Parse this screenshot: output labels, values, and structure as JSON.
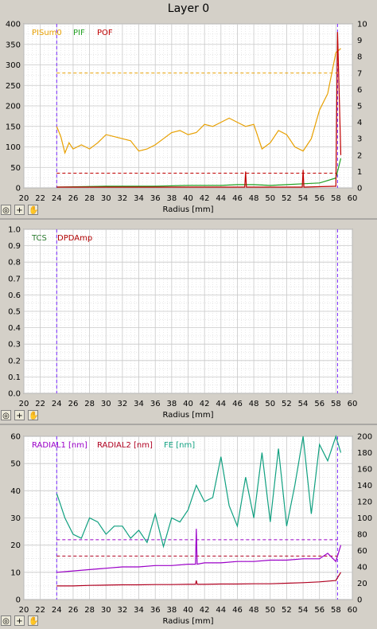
{
  "window": {
    "title": "Layer 0"
  },
  "colors": {
    "plot_bg": "#ffffff",
    "grid": "#c8c8c8",
    "pisum": "#e8a000",
    "pif": "#22a022",
    "pof": "#c00000",
    "tcs": "#2e7d32",
    "dpd": "#b00000",
    "radial1": "#9b00c8",
    "radial2": "#b00020",
    "fe": "#10a080",
    "marker": "#7a28ff"
  },
  "panels": [
    {
      "xlabel": "Radius [mm]",
      "toolbar": [
        "target-icon",
        "plus-icon",
        "hand-icon"
      ]
    },
    {
      "xlabel": "Radius [mm]",
      "toolbar": [
        "target-icon",
        "plus-icon",
        "hand-icon"
      ]
    },
    {
      "xlabel": "Radius [mm]",
      "toolbar": [
        "target-icon",
        "plus-icon",
        "hand-icon"
      ]
    }
  ],
  "chart_data": [
    {
      "type": "line",
      "xlabel": "Radius [mm]",
      "xlim": [
        20,
        60
      ],
      "xticks": [
        20,
        22,
        24,
        26,
        28,
        30,
        32,
        34,
        36,
        38,
        40,
        42,
        44,
        46,
        48,
        50,
        52,
        54,
        56,
        58,
        60
      ],
      "ylim": [
        0,
        400
      ],
      "yticks": [
        0,
        50,
        100,
        150,
        200,
        250,
        300,
        350,
        400
      ],
      "y2lim": [
        0,
        10
      ],
      "y2ticks": [
        0,
        1,
        2,
        3,
        4,
        5,
        6,
        7,
        8,
        9,
        10
      ],
      "grid": true,
      "legend": "top-left",
      "markers": [
        24.0,
        58.2
      ],
      "thresholds": [
        {
          "series": "PISum0",
          "y": 280
        },
        {
          "series": "POF",
          "y": 0.9
        }
      ],
      "series": [
        {
          "name": "PISum0",
          "axis": "left",
          "x": [
            24,
            24.5,
            25,
            25.5,
            26,
            27,
            28,
            29,
            30,
            31,
            32,
            33,
            34,
            35,
            36,
            37,
            38,
            39,
            40,
            41,
            42,
            43,
            44,
            45,
            46,
            47,
            48,
            49,
            50,
            51,
            52,
            53,
            54,
            55,
            56,
            57,
            58,
            58.6
          ],
          "y": [
            150,
            125,
            85,
            110,
            95,
            105,
            95,
            110,
            130,
            125,
            120,
            115,
            90,
            95,
            105,
            120,
            135,
            140,
            130,
            135,
            155,
            150,
            160,
            170,
            160,
            150,
            155,
            95,
            110,
            140,
            130,
            100,
            90,
            120,
            190,
            230,
            330,
            340
          ]
        },
        {
          "name": "PIF",
          "axis": "right",
          "x": [
            24,
            30,
            36,
            40,
            44,
            46,
            48,
            50,
            52,
            54,
            56,
            58,
            58.6
          ],
          "y": [
            0.05,
            0.1,
            0.1,
            0.15,
            0.15,
            0.2,
            0.2,
            0.15,
            0.2,
            0.25,
            0.3,
            0.6,
            1.8
          ]
        },
        {
          "name": "POF",
          "axis": "right",
          "x": [
            24,
            46.9,
            47,
            47.1,
            53.9,
            54,
            54.1,
            58,
            58.2,
            58.6
          ],
          "y": [
            0.05,
            0.05,
            1.0,
            0.05,
            0.05,
            1.1,
            0.05,
            0.1,
            9.5,
            2.0
          ]
        }
      ]
    },
    {
      "type": "line",
      "xlabel": "Radius [mm]",
      "xlim": [
        20,
        60
      ],
      "xticks": [
        20,
        22,
        24,
        26,
        28,
        30,
        32,
        34,
        36,
        38,
        40,
        42,
        44,
        46,
        48,
        50,
        52,
        54,
        56,
        58,
        60
      ],
      "ylim": [
        0,
        1
      ],
      "yticks": [
        0.0,
        0.1,
        0.2,
        0.3,
        0.4,
        0.5,
        0.6,
        0.7,
        0.8,
        0.9,
        1.0
      ],
      "grid": true,
      "legend": "top-left",
      "markers": [
        24.0,
        58.2
      ],
      "series": [
        {
          "name": "TCS",
          "axis": "left",
          "x": [],
          "y": []
        },
        {
          "name": "DPDAmp",
          "axis": "left",
          "x": [],
          "y": []
        }
      ]
    },
    {
      "type": "line",
      "xlabel": "Radius [mm]",
      "xlim": [
        20,
        60
      ],
      "xticks": [
        20,
        22,
        24,
        26,
        28,
        30,
        32,
        34,
        36,
        38,
        40,
        42,
        44,
        46,
        48,
        50,
        52,
        54,
        56,
        58,
        60
      ],
      "ylim": [
        0,
        60
      ],
      "yticks": [
        0,
        10,
        20,
        30,
        40,
        50,
        60
      ],
      "y2lim": [
        0,
        200
      ],
      "y2ticks": [
        0,
        20,
        40,
        60,
        80,
        100,
        120,
        140,
        160,
        180,
        200
      ],
      "grid": true,
      "legend": "top",
      "markers": [
        24.0,
        58.2
      ],
      "thresholds": [
        {
          "series": "RADIAL1 [nm]",
          "y": 22
        },
        {
          "series": "RADIAL2 [nm]",
          "y": 16
        }
      ],
      "series": [
        {
          "name": "RADIAL1 [nm]",
          "axis": "left",
          "x": [
            24,
            26,
            28,
            30,
            32,
            34,
            36,
            38,
            40,
            40.9,
            41,
            41.1,
            42,
            44,
            46,
            48,
            50,
            52,
            54,
            56,
            57,
            58,
            58.6
          ],
          "y": [
            10,
            10.5,
            11,
            11.5,
            12,
            12,
            12.5,
            12.5,
            13,
            13,
            26,
            13,
            13.5,
            13.5,
            14,
            14,
            14.5,
            14.5,
            15,
            15,
            17,
            14,
            20
          ]
        },
        {
          "name": "RADIAL2 [nm]",
          "axis": "left",
          "x": [
            24,
            26,
            28,
            30,
            32,
            34,
            36,
            38,
            40,
            40.9,
            41,
            41.1,
            42,
            44,
            46,
            48,
            50,
            52,
            54,
            56,
            58,
            58.6
          ],
          "y": [
            5,
            5,
            5.2,
            5.3,
            5.4,
            5.4,
            5.5,
            5.5,
            5.6,
            5.6,
            7,
            5.6,
            5.6,
            5.7,
            5.7,
            5.8,
            5.8,
            6,
            6.2,
            6.5,
            7,
            10
          ]
        },
        {
          "name": "FE [nm]",
          "axis": "right",
          "x": [
            24,
            24.5,
            25,
            26,
            27,
            28,
            29,
            30,
            31,
            32,
            33,
            34,
            35,
            36,
            37,
            38,
            39,
            40,
            41,
            42,
            43,
            44,
            45,
            46,
            47,
            48,
            49,
            50,
            51,
            52,
            53,
            54,
            55,
            56,
            57,
            58,
            58.6
          ],
          "y": [
            130,
            115,
            100,
            80,
            75,
            100,
            95,
            80,
            90,
            90,
            75,
            85,
            70,
            105,
            65,
            100,
            95,
            110,
            140,
            120,
            125,
            175,
            115,
            90,
            150,
            100,
            180,
            95,
            185,
            90,
            140,
            200,
            105,
            190,
            170,
            200,
            180
          ]
        }
      ]
    }
  ]
}
